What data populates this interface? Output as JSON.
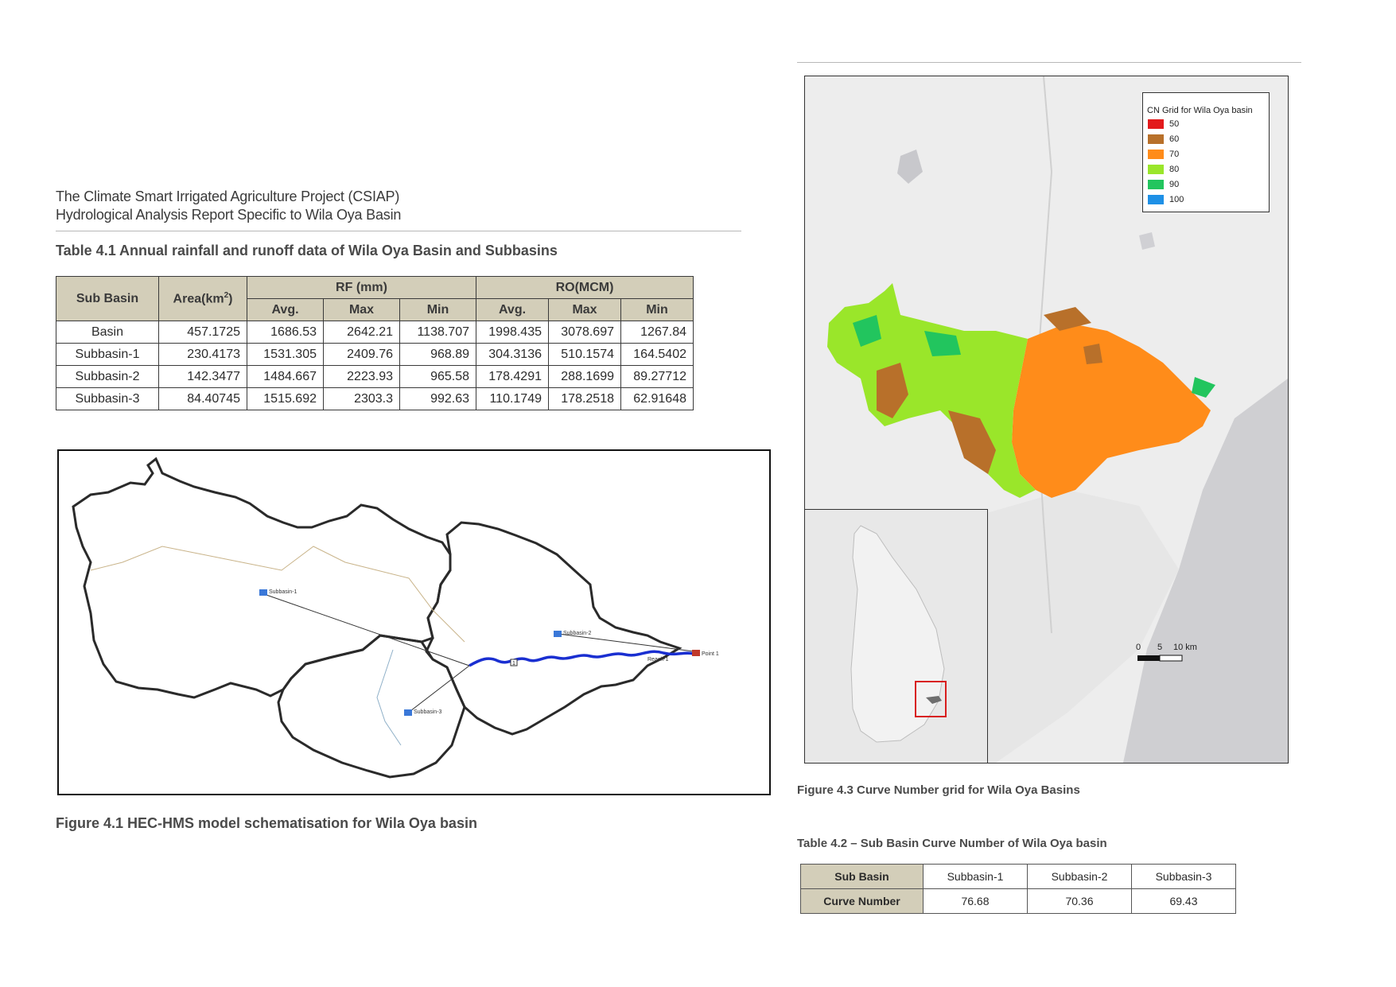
{
  "header": {
    "line1": "The Climate Smart Irrigated Agriculture Project (CSIAP)",
    "line2": "Hydrological Analysis Report Specific to Wila Oya Basin"
  },
  "table41": {
    "caption": "Table 4.1 Annual rainfall and runoff data of Wila Oya Basin and Subbasins",
    "col_subbasin": "Sub Basin",
    "col_area": "Area(km",
    "col_area_sup": "2",
    "col_area_end": ")",
    "group_rf": "RF (mm)",
    "group_ro": "RO(MCM)",
    "sub_headers": [
      "Avg.",
      "Max",
      "Min",
      "Avg.",
      "Max",
      "Min"
    ],
    "rows": [
      {
        "name": "Basin",
        "area": "457.1725",
        "rf_avg": "1686.53",
        "rf_max": "2642.21",
        "rf_min": "1138.707",
        "ro_avg": "1998.435",
        "ro_max": "3078.697",
        "ro_min": "1267.84"
      },
      {
        "name": "Subbasin-1",
        "area": "230.4173",
        "rf_avg": "1531.305",
        "rf_max": "2409.76",
        "rf_min": "968.89",
        "ro_avg": "304.3136",
        "ro_max": "510.1574",
        "ro_min": "164.5402"
      },
      {
        "name": "Subbasin-2",
        "area": "142.3477",
        "rf_avg": "1484.667",
        "rf_max": "2223.93",
        "rf_min": "965.58",
        "ro_avg": "178.4291",
        "ro_max": "288.1699",
        "ro_min": "89.27712"
      },
      {
        "name": "Subbasin-3",
        "area": "84.40745",
        "rf_avg": "1515.692",
        "rf_max": "2303.3",
        "rf_min": "992.63",
        "ro_avg": "110.1749",
        "ro_max": "178.2518",
        "ro_min": "62.91648"
      }
    ]
  },
  "figure41": {
    "caption": "Figure 4.1 HEC-HMS model schematisation for Wila Oya basin",
    "labels": {
      "subbasin1": "Subbasin-1",
      "subbasin2": "Subbasin-2",
      "subbasin3": "Subbasin-3",
      "reach": "Reach-1",
      "outlet": "Point 1",
      "junction": "1"
    }
  },
  "figure43": {
    "caption": "Figure 4.3 Curve Number grid for Wila Oya Basins",
    "legend_title": "CN Grid for Wila Oya basin",
    "legend": [
      {
        "label": "50",
        "color": "#e31a1c"
      },
      {
        "label": "60",
        "color": "#b8702a"
      },
      {
        "label": "70",
        "color": "#ff8c1a"
      },
      {
        "label": "80",
        "color": "#9ae62a"
      },
      {
        "label": "90",
        "color": "#22c55e"
      },
      {
        "label": "100",
        "color": "#1e90e6"
      }
    ],
    "scale": {
      "zero": "0",
      "mid": "5",
      "end": "10 km"
    }
  },
  "table42": {
    "caption": "Table 4.2 – Sub Basin Curve Number of Wila Oya basin",
    "row1_header": "Sub Basin",
    "row2_header": "Curve Number",
    "subbasins": [
      "Subbasin-1",
      "Subbasin-2",
      "Subbasin-3"
    ],
    "values": [
      "76.68",
      "70.36",
      "69.43"
    ]
  }
}
